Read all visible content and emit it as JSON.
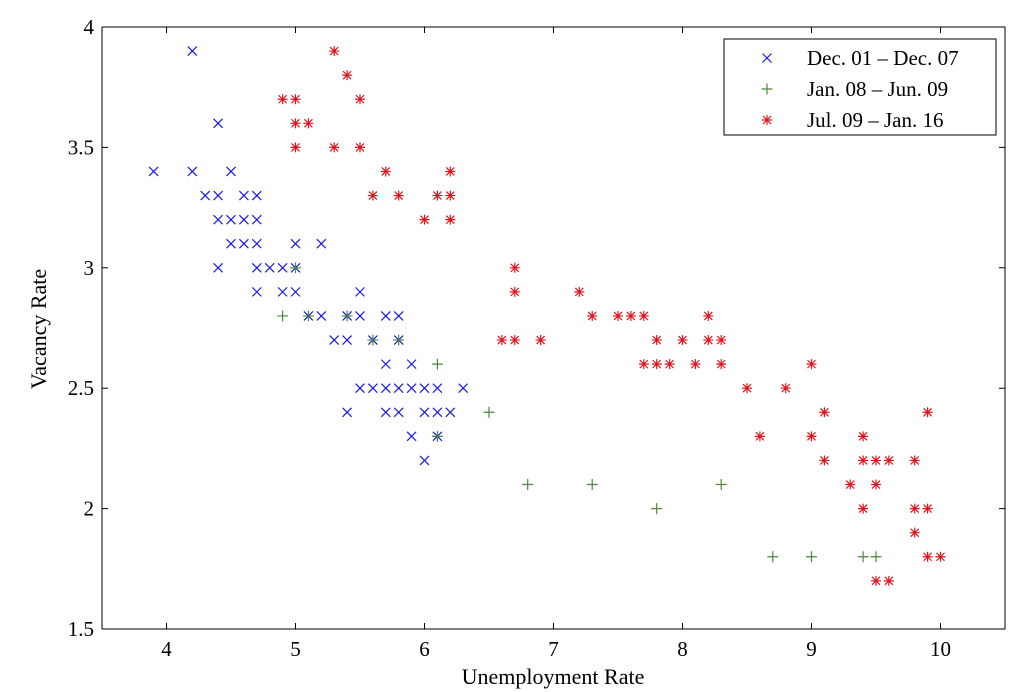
{
  "chart_data": {
    "type": "scatter",
    "title": "",
    "xlabel": "Unemployment Rate",
    "ylabel": "Vacancy Rate",
    "xlim": [
      3.5,
      10.5
    ],
    "ylim": [
      1.5,
      4.0
    ],
    "xticks": [
      4,
      5,
      6,
      7,
      8,
      9,
      10
    ],
    "yticks": [
      1.5,
      2,
      2.5,
      3,
      3.5,
      4
    ],
    "xtick_labels": [
      "4",
      "5",
      "6",
      "7",
      "8",
      "9",
      "10"
    ],
    "ytick_labels": [
      "1.5",
      "2",
      "2.5",
      "3",
      "3.5",
      "4"
    ],
    "grid": false,
    "legend_position": "top-right",
    "series": [
      {
        "name": "Dec. 01 – Dec. 07",
        "marker": "x",
        "color": "#1a1adb",
        "points": [
          [
            3.9,
            3.4
          ],
          [
            4.2,
            3.9
          ],
          [
            4.2,
            3.4
          ],
          [
            4.3,
            3.3
          ],
          [
            4.4,
            3.6
          ],
          [
            4.4,
            3.3
          ],
          [
            4.4,
            3.2
          ],
          [
            4.4,
            3.0
          ],
          [
            4.5,
            3.4
          ],
          [
            4.5,
            3.2
          ],
          [
            4.5,
            3.1
          ],
          [
            4.6,
            3.3
          ],
          [
            4.6,
            3.2
          ],
          [
            4.6,
            3.1
          ],
          [
            4.7,
            3.3
          ],
          [
            4.7,
            3.2
          ],
          [
            4.7,
            3.1
          ],
          [
            4.7,
            3.0
          ],
          [
            4.7,
            2.9
          ],
          [
            4.8,
            3.0
          ],
          [
            4.9,
            3.0
          ],
          [
            4.9,
            2.9
          ],
          [
            5.0,
            3.1
          ],
          [
            5.0,
            3.0
          ],
          [
            5.0,
            2.9
          ],
          [
            5.1,
            2.8
          ],
          [
            5.2,
            3.1
          ],
          [
            5.2,
            2.8
          ],
          [
            5.3,
            2.7
          ],
          [
            5.4,
            2.8
          ],
          [
            5.4,
            2.7
          ],
          [
            5.4,
            2.4
          ],
          [
            5.5,
            2.9
          ],
          [
            5.5,
            2.8
          ],
          [
            5.5,
            2.5
          ],
          [
            5.6,
            2.7
          ],
          [
            5.6,
            2.5
          ],
          [
            5.7,
            2.8
          ],
          [
            5.7,
            2.6
          ],
          [
            5.7,
            2.5
          ],
          [
            5.7,
            2.4
          ],
          [
            5.8,
            2.8
          ],
          [
            5.8,
            2.7
          ],
          [
            5.8,
            2.5
          ],
          [
            5.8,
            2.4
          ],
          [
            5.9,
            2.6
          ],
          [
            5.9,
            2.5
          ],
          [
            5.9,
            2.3
          ],
          [
            6.0,
            2.5
          ],
          [
            6.0,
            2.4
          ],
          [
            6.0,
            2.2
          ],
          [
            6.1,
            2.5
          ],
          [
            6.1,
            2.4
          ],
          [
            6.1,
            2.3
          ],
          [
            6.2,
            2.4
          ],
          [
            6.3,
            2.5
          ]
        ]
      },
      {
        "name": "Jan. 08 – Jun. 09",
        "marker": "+",
        "color": "#4a8a3a",
        "points": [
          [
            4.9,
            2.8
          ],
          [
            5.0,
            3.0
          ],
          [
            5.1,
            2.8
          ],
          [
            5.4,
            2.8
          ],
          [
            5.6,
            2.7
          ],
          [
            5.8,
            2.7
          ],
          [
            6.1,
            2.6
          ],
          [
            6.1,
            2.3
          ],
          [
            6.5,
            2.4
          ],
          [
            6.8,
            2.1
          ],
          [
            7.3,
            2.1
          ],
          [
            7.8,
            2.0
          ],
          [
            8.3,
            2.1
          ],
          [
            8.7,
            1.8
          ],
          [
            9.0,
            1.8
          ],
          [
            9.4,
            1.8
          ],
          [
            9.5,
            1.8
          ]
        ]
      },
      {
        "name": "Jul. 09 – Jan. 16",
        "marker": "*",
        "color": "#e0141e",
        "points": [
          [
            4.9,
            3.7
          ],
          [
            5.0,
            3.7
          ],
          [
            5.0,
            3.6
          ],
          [
            5.0,
            3.5
          ],
          [
            5.1,
            3.6
          ],
          [
            5.3,
            3.9
          ],
          [
            5.3,
            3.5
          ],
          [
            5.4,
            3.8
          ],
          [
            5.5,
            3.7
          ],
          [
            5.5,
            3.5
          ],
          [
            5.6,
            3.3
          ],
          [
            5.7,
            3.4
          ],
          [
            5.8,
            3.3
          ],
          [
            6.0,
            3.2
          ],
          [
            6.1,
            3.3
          ],
          [
            6.2,
            3.4
          ],
          [
            6.2,
            3.3
          ],
          [
            6.2,
            3.2
          ],
          [
            6.6,
            2.7
          ],
          [
            6.7,
            3.0
          ],
          [
            6.7,
            2.9
          ],
          [
            6.7,
            2.7
          ],
          [
            6.9,
            2.7
          ],
          [
            7.2,
            2.9
          ],
          [
            7.3,
            2.8
          ],
          [
            7.5,
            2.8
          ],
          [
            7.6,
            2.8
          ],
          [
            7.7,
            2.8
          ],
          [
            7.7,
            2.6
          ],
          [
            7.8,
            2.7
          ],
          [
            7.8,
            2.6
          ],
          [
            7.9,
            2.6
          ],
          [
            8.0,
            2.7
          ],
          [
            8.1,
            2.6
          ],
          [
            8.2,
            2.8
          ],
          [
            8.2,
            2.7
          ],
          [
            8.3,
            2.7
          ],
          [
            8.3,
            2.6
          ],
          [
            8.5,
            2.5
          ],
          [
            8.6,
            2.3
          ],
          [
            8.8,
            2.5
          ],
          [
            9.0,
            2.6
          ],
          [
            9.0,
            2.3
          ],
          [
            9.1,
            2.4
          ],
          [
            9.1,
            2.2
          ],
          [
            9.3,
            2.1
          ],
          [
            9.4,
            2.3
          ],
          [
            9.4,
            2.2
          ],
          [
            9.4,
            2.0
          ],
          [
            9.5,
            2.2
          ],
          [
            9.5,
            2.1
          ],
          [
            9.5,
            1.7
          ],
          [
            9.6,
            2.2
          ],
          [
            9.6,
            1.7
          ],
          [
            9.8,
            2.2
          ],
          [
            9.8,
            2.0
          ],
          [
            9.8,
            1.9
          ],
          [
            9.9,
            2.4
          ],
          [
            9.9,
            2.0
          ],
          [
            9.9,
            1.8
          ],
          [
            10.0,
            1.8
          ]
        ]
      }
    ]
  }
}
